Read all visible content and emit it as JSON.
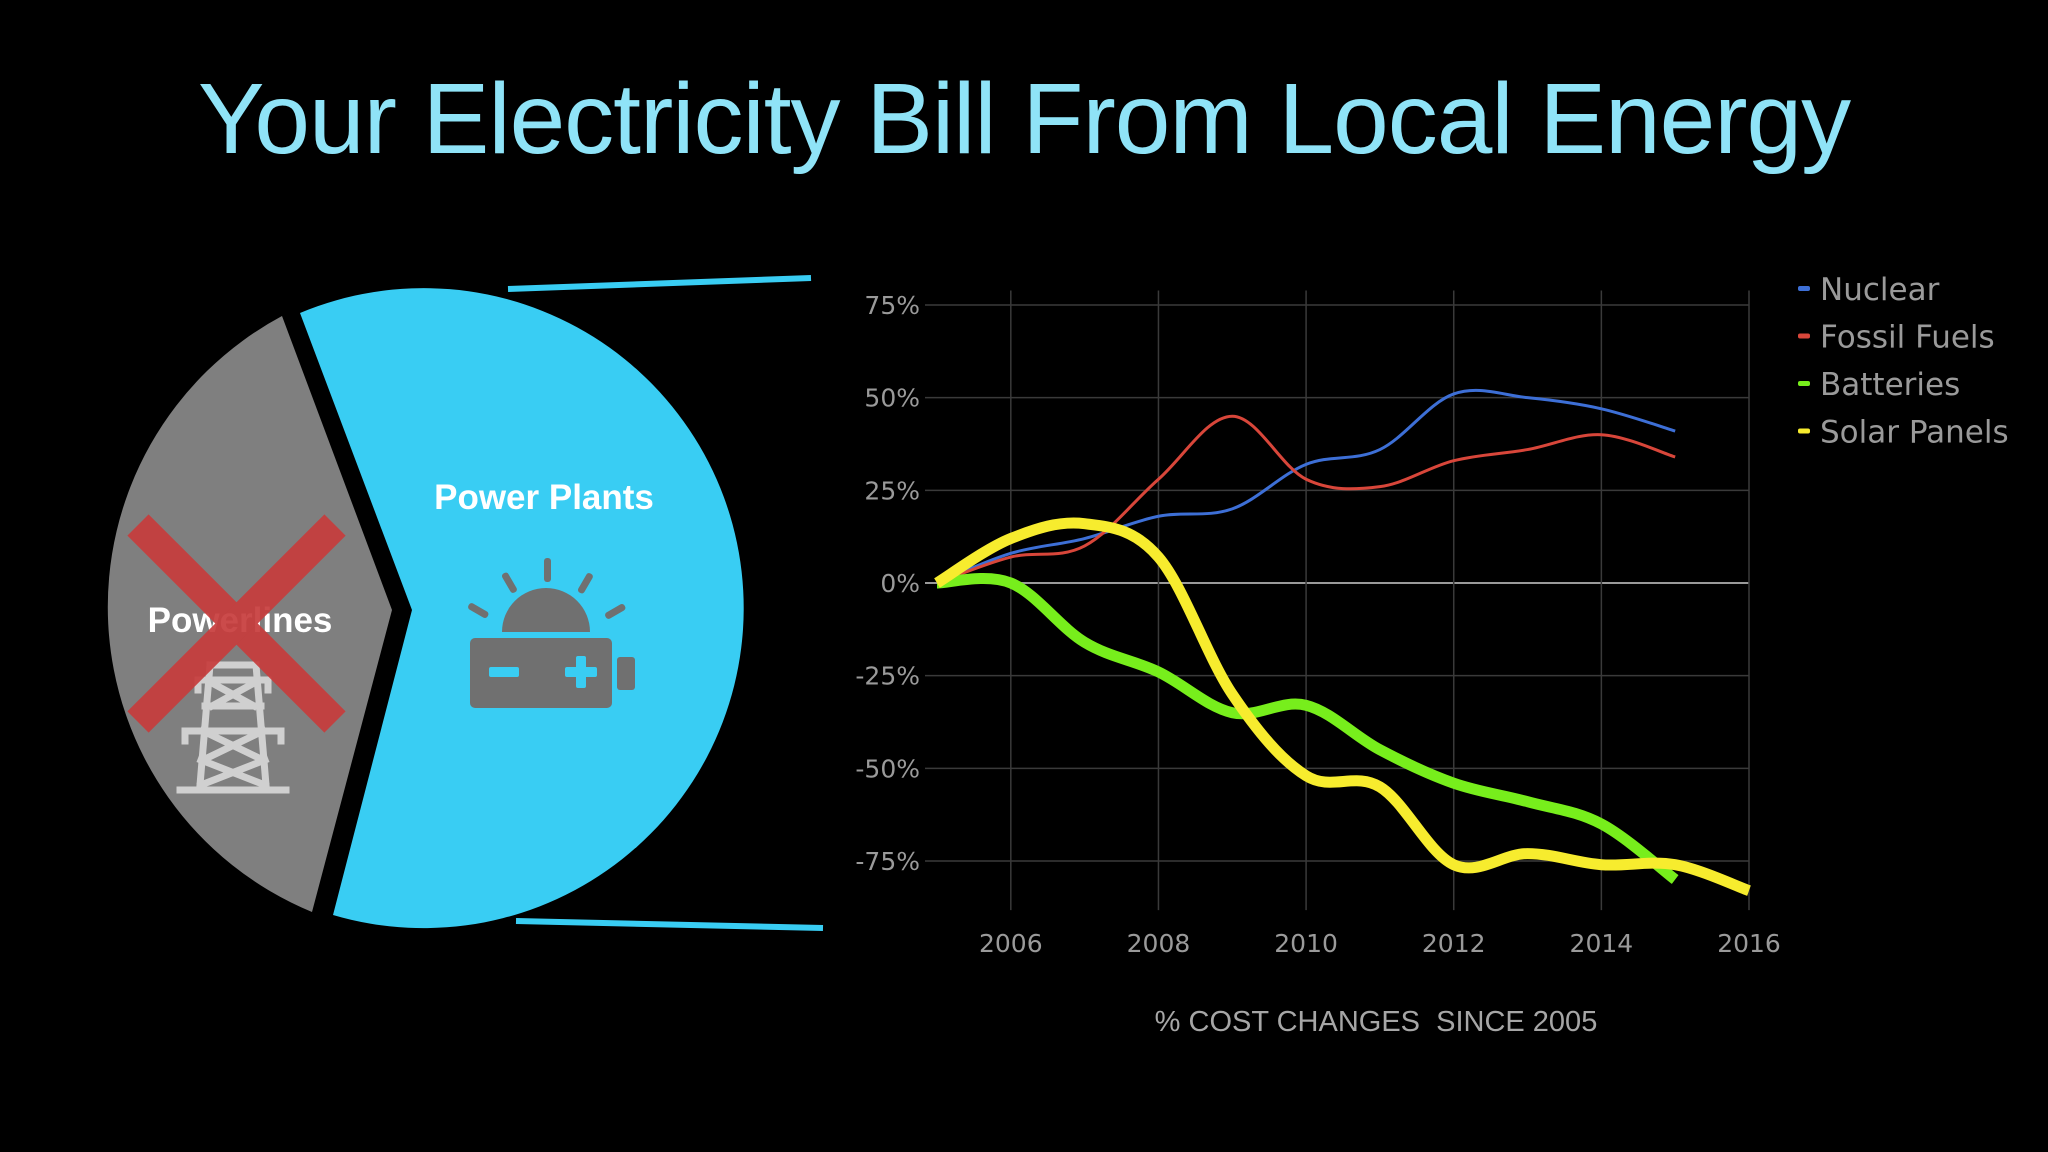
{
  "title": "Your Electricity Bill From Local Energy",
  "pie": {
    "slices": [
      {
        "label": "Powerlines",
        "color": "#7f7f7f",
        "icon": "transmission-tower-icon",
        "crossed_out": true
      },
      {
        "label": "Power Plants",
        "color": "#39cdf3",
        "icon": "solar-battery-icon",
        "crossed_out": false
      }
    ],
    "cross_color": "#c73c3c",
    "connector_color": "#39cdf3"
  },
  "chart_data": {
    "type": "line",
    "title": "",
    "xlabel": "% COST CHANGES  SINCE 2005",
    "ylabel": "",
    "xlim": [
      2005,
      2016
    ],
    "ylim": [
      -85,
      80
    ],
    "x_ticks": [
      2006,
      2008,
      2010,
      2012,
      2014,
      2016
    ],
    "x_tick_labels": [
      "2006",
      "2008",
      "2010",
      "2012",
      "2014",
      "2016"
    ],
    "y_ticks": [
      75,
      50,
      25,
      0,
      -25,
      -50,
      -75
    ],
    "y_tick_labels": [
      "75%",
      "50%",
      "25%",
      "0%",
      "-25%",
      "-50%",
      "-75%"
    ],
    "grid": true,
    "legend_position": "top-right",
    "series": [
      {
        "name": "Nuclear",
        "color": "#3d6fd6",
        "width": "thin",
        "x": [
          2005,
          2006,
          2007,
          2008,
          2009,
          2010,
          2011,
          2012,
          2013,
          2014,
          2015
        ],
        "values": [
          0,
          8,
          12,
          18,
          20,
          32,
          36,
          51,
          50,
          47,
          41
        ]
      },
      {
        "name": "Fossil Fuels",
        "color": "#d8463a",
        "width": "thin",
        "x": [
          2005,
          2006,
          2007,
          2008,
          2009,
          2010,
          2011,
          2012,
          2013,
          2014,
          2015
        ],
        "values": [
          0,
          7,
          10,
          28,
          45,
          28,
          26,
          33,
          36,
          40,
          34
        ]
      },
      {
        "name": "Batteries",
        "color": "#77ee1c",
        "width": "thick",
        "x": [
          2005,
          2006,
          2007,
          2008,
          2009,
          2010,
          2011,
          2012,
          2013,
          2014,
          2015
        ],
        "values": [
          0,
          0,
          -16,
          -24,
          -35,
          -33,
          -45,
          -54,
          -59,
          -65,
          -80
        ]
      },
      {
        "name": "Solar Panels",
        "color": "#f7ec2e",
        "width": "thick",
        "x": [
          2005,
          2006,
          2007,
          2008,
          2009,
          2010,
          2011,
          2012,
          2013,
          2014,
          2015,
          2016
        ],
        "values": [
          0,
          12,
          16,
          7,
          -30,
          -52,
          -55,
          -76,
          -73,
          -76,
          -76,
          -83
        ]
      }
    ]
  }
}
